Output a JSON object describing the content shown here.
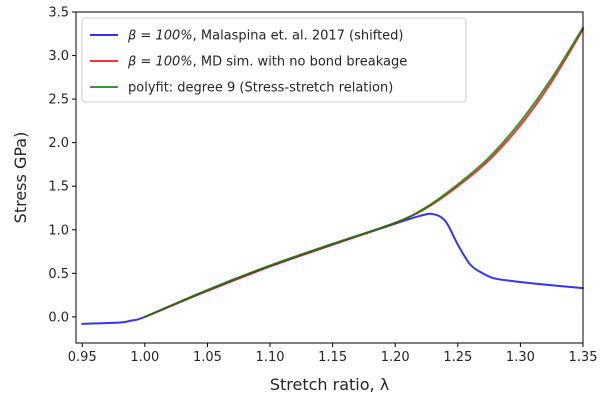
{
  "chart_data": {
    "type": "line",
    "xlabel": "Stretch ratio, λ",
    "ylabel": "Stress GPa)",
    "xlim": [
      0.945,
      1.35
    ],
    "ylim": [
      -0.3,
      3.5
    ],
    "xticks": [
      "0.95",
      "1.00",
      "1.05",
      "1.10",
      "1.15",
      "1.20",
      "1.25",
      "1.30",
      "1.35"
    ],
    "yticks": [
      "0.0",
      "0.5",
      "1.0",
      "1.5",
      "2.0",
      "2.5",
      "3.0",
      "3.5"
    ],
    "grid": false,
    "legend_position": "top-left",
    "series": [
      {
        "name": "β = 100%, Malaspina et. al. 2017 (shifted)",
        "legend_prefix": "β = 100%",
        "legend_rest": ", Malaspina et. al. 2017 (shifted)",
        "color": "#0000ff",
        "x": [
          0.95,
          0.96,
          0.98,
          0.99,
          1.0,
          1.05,
          1.1,
          1.15,
          1.2,
          1.22,
          1.23,
          1.24,
          1.25,
          1.26,
          1.27,
          1.28,
          1.3,
          1.32,
          1.35
        ],
        "y": [
          -0.08,
          -0.075,
          -0.065,
          -0.04,
          0.0,
          0.3,
          0.58,
          0.83,
          1.07,
          1.16,
          1.18,
          1.1,
          0.83,
          0.6,
          0.5,
          0.44,
          0.4,
          0.37,
          0.33
        ]
      },
      {
        "name": "β = 100%, MD sim. with no bond breakage",
        "legend_prefix": "β = 100%",
        "legend_rest": ", MD sim. with no bond breakage",
        "color": "#ff0000",
        "x": [
          1.0,
          1.05,
          1.1,
          1.15,
          1.2,
          1.225,
          1.25,
          1.275,
          1.3,
          1.325,
          1.35
        ],
        "y": [
          0.0,
          0.3,
          0.58,
          0.83,
          1.08,
          1.25,
          1.5,
          1.8,
          2.2,
          2.7,
          3.3
        ]
      },
      {
        "name": "polyfit: degree 9 (Stress-stretch relation)",
        "legend_prefix": "",
        "legend_rest": "polyfit: degree 9 (Stress-stretch relation)",
        "color": "#008000",
        "x": [
          1.0,
          1.05,
          1.1,
          1.15,
          1.2,
          1.225,
          1.25,
          1.275,
          1.3,
          1.325,
          1.35
        ],
        "y": [
          0.0,
          0.31,
          0.59,
          0.84,
          1.08,
          1.26,
          1.52,
          1.83,
          2.24,
          2.74,
          3.32
        ]
      }
    ]
  }
}
